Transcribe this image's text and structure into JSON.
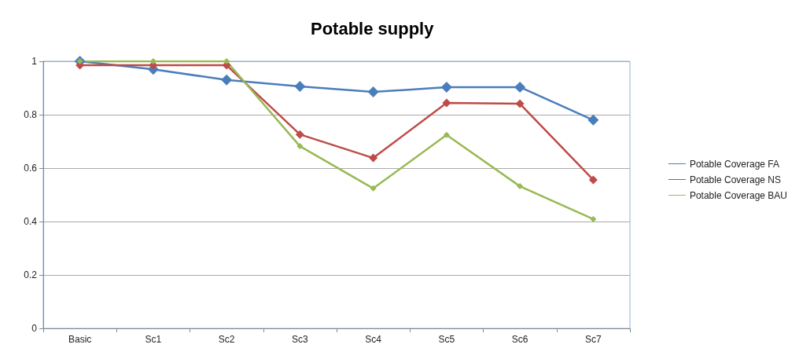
{
  "chart_data": {
    "type": "line",
    "title": "Potable supply",
    "categories": [
      "Basic",
      "Sc1",
      "Sc2",
      "Sc3",
      "Sc4",
      "Sc5",
      "Sc6",
      "Sc7"
    ],
    "series": [
      {
        "name": "Potable Coverage FA",
        "color": "#4a7ebb",
        "values": [
          1.0,
          0.97,
          0.93,
          0.906,
          0.885,
          0.903,
          0.903,
          0.78
        ]
      },
      {
        "name": "Potable Coverage NS",
        "color": "#be4b48",
        "values": [
          0.985,
          0.985,
          0.985,
          0.726,
          0.638,
          0.844,
          0.841,
          0.556
        ]
      },
      {
        "name": "Potable Coverage BAU",
        "color": "#98b954",
        "values": [
          1.0,
          1.0,
          1.0,
          0.682,
          0.524,
          0.724,
          0.532,
          0.409
        ]
      }
    ],
    "ylim": [
      0,
      1
    ],
    "yticks": [
      0,
      0.2,
      0.4,
      0.6,
      0.8,
      1
    ],
    "grid": "y",
    "legend": "right",
    "marker": "diamond",
    "line_style": "solid"
  }
}
